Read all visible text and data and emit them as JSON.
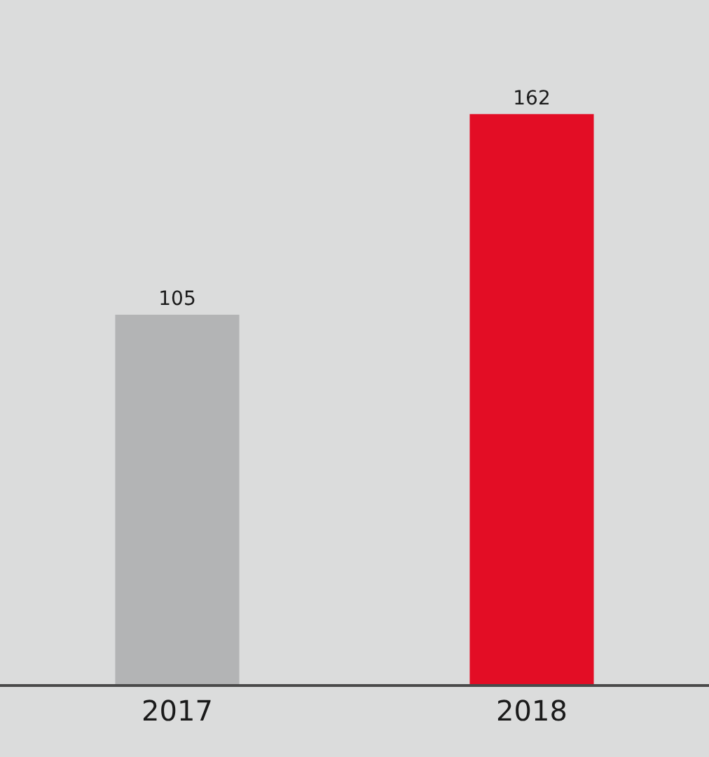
{
  "chart_data": {
    "type": "bar",
    "categories": [
      "2017",
      "2018"
    ],
    "values": [
      105,
      162
    ],
    "colors": [
      "#b3b4b5",
      "#e30d25"
    ],
    "data_labels": true
  }
}
